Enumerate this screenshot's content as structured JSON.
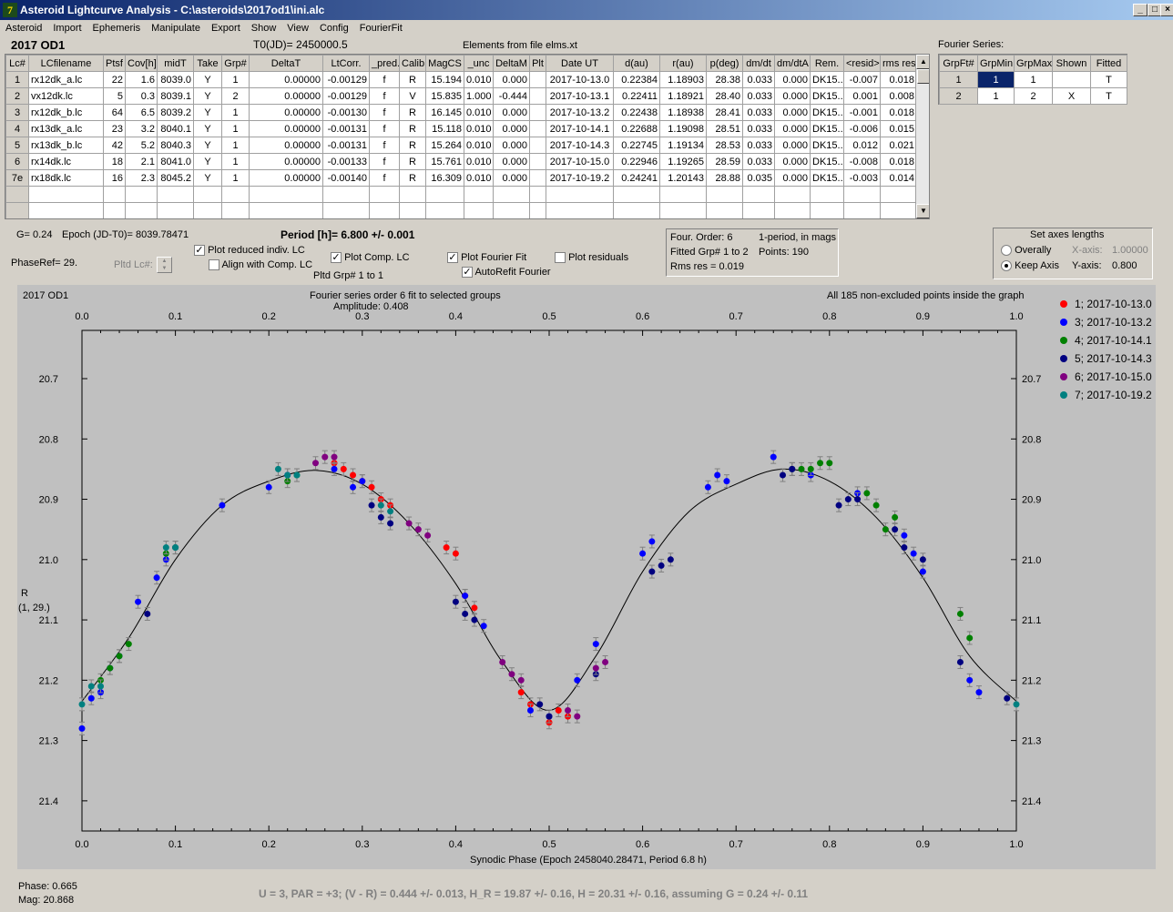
{
  "window": {
    "title": "Asteroid Lightcurve Analysis - C:\\asteroids\\2017od1\\ini.alc",
    "icon_char": "7"
  },
  "menu": [
    "Asteroid",
    "Import",
    "Ephemeris",
    "Manipulate",
    "Export",
    "Show",
    "View",
    "Config",
    "FourierFit"
  ],
  "header": {
    "object": "2017 OD1",
    "t0": "T0(JD)= 2450000.5",
    "elements": "Elements from file elms.xt"
  },
  "lc_table": {
    "columns": [
      "Lc#",
      "LCfilename",
      "Ptsf",
      "Cov[h]",
      "midT",
      "Take",
      "Grp#",
      "DeltaT",
      "LtCorr.",
      "_pred.",
      "Calib.",
      "MagCS",
      "_unc",
      "DeltaM",
      "Plt",
      "Date UT",
      "d(au)",
      "r(au)",
      "p(deg)",
      "dm/dt",
      "dm/dtA",
      "Rem.",
      "<resid>",
      "rms res"
    ],
    "rows": [
      [
        "1",
        "rx12dk_a.lc",
        "22",
        "1.6",
        "8039.0",
        "Y",
        "1",
        "0.00000",
        "-0.00129",
        "f",
        "R",
        "15.194",
        "0.010",
        "0.000",
        "",
        "2017-10-13.0",
        "0.22384",
        "1.18903",
        "28.38",
        "0.033",
        "0.000",
        "DK15..",
        "-0.007",
        "0.018"
      ],
      [
        "2",
        "vx12dk.lc",
        "5",
        "0.3",
        "8039.1",
        "Y",
        "2",
        "0.00000",
        "-0.00129",
        "f",
        "V",
        "15.835",
        "1.000",
        "-0.444",
        "",
        "2017-10-13.1",
        "0.22411",
        "1.18921",
        "28.40",
        "0.033",
        "0.000",
        "DK15..",
        "0.001",
        "0.008"
      ],
      [
        "3",
        "rx12dk_b.lc",
        "64",
        "6.5",
        "8039.2",
        "Y",
        "1",
        "0.00000",
        "-0.00130",
        "f",
        "R",
        "16.145",
        "0.010",
        "0.000",
        "",
        "2017-10-13.2",
        "0.22438",
        "1.18938",
        "28.41",
        "0.033",
        "0.000",
        "DK15..",
        "-0.001",
        "0.018"
      ],
      [
        "4",
        "rx13dk_a.lc",
        "23",
        "3.2",
        "8040.1",
        "Y",
        "1",
        "0.00000",
        "-0.00131",
        "f",
        "R",
        "15.118",
        "0.010",
        "0.000",
        "",
        "2017-10-14.1",
        "0.22688",
        "1.19098",
        "28.51",
        "0.033",
        "0.000",
        "DK15..",
        "-0.006",
        "0.015"
      ],
      [
        "5",
        "rx13dk_b.lc",
        "42",
        "5.2",
        "8040.3",
        "Y",
        "1",
        "0.00000",
        "-0.00131",
        "f",
        "R",
        "15.264",
        "0.010",
        "0.000",
        "",
        "2017-10-14.3",
        "0.22745",
        "1.19134",
        "28.53",
        "0.033",
        "0.000",
        "DK15..",
        "0.012",
        "0.021"
      ],
      [
        "6",
        "rx14dk.lc",
        "18",
        "2.1",
        "8041.0",
        "Y",
        "1",
        "0.00000",
        "-0.00133",
        "f",
        "R",
        "15.761",
        "0.010",
        "0.000",
        "",
        "2017-10-15.0",
        "0.22946",
        "1.19265",
        "28.59",
        "0.033",
        "0.000",
        "DK15..",
        "-0.008",
        "0.018"
      ],
      [
        "7e",
        "rx18dk.lc",
        "16",
        "2.3",
        "8045.2",
        "Y",
        "1",
        "0.00000",
        "-0.00140",
        "f",
        "R",
        "16.309",
        "0.010",
        "0.000",
        "",
        "2017-10-19.2",
        "0.24241",
        "1.20143",
        "28.88",
        "0.035",
        "0.000",
        "DK15..",
        "-0.003",
        "0.014"
      ],
      [
        "",
        "",
        "",
        "",
        "",
        "",
        "",
        "",
        "",
        "",
        "",
        "",
        "",
        "",
        "",
        "",
        "",
        "",
        "",
        "",
        "",
        "",
        "",
        ""
      ],
      [
        "",
        "",
        "",
        "",
        "",
        "",
        "",
        "",
        "",
        "",
        "",
        "",
        "",
        "",
        "",
        "",
        "",
        "",
        "",
        "",
        "",
        "",
        "",
        ""
      ]
    ]
  },
  "fourier_series": {
    "title": "Fourier Series:",
    "columns": [
      "GrpFt#",
      "GrpMin",
      "GrpMax",
      "Shown",
      "Fitted"
    ],
    "rows": [
      [
        "1",
        "1",
        "1",
        "",
        "T"
      ],
      [
        "2",
        "1",
        "2",
        "X",
        "T"
      ]
    ]
  },
  "info": {
    "g": "G= 0.24",
    "epoch": "Epoch (JD-T0)= 8039.78471",
    "period": "Period [h]= 6.800 +/- 0.001",
    "phase_ref": "PhaseRef= 29.",
    "pltd_lc": "Pltd Lc#:",
    "pltd_grp": "Pltd Grp#  1   to   1"
  },
  "checks": {
    "plot_reduced": {
      "label": "Plot reduced indiv. LC",
      "checked": "✓"
    },
    "align_comp": {
      "label": "Align with Comp. LC",
      "checked": ""
    },
    "plot_comp": {
      "label": "Plot Comp. LC",
      "checked": "✓"
    },
    "plot_fourier": {
      "label": "Plot Fourier Fit",
      "checked": "✓"
    },
    "autorefit": {
      "label": "AutoRefit Fourier",
      "checked": "✓"
    },
    "plot_residuals": {
      "label": "Plot residuals",
      "checked": ""
    }
  },
  "fourier_box": {
    "order": "Four. Order:  6",
    "period_mode": "1-period, in mags",
    "fitted": "Fitted Grp# 1 to 2",
    "points": "Points: 190",
    "rms": "Rms res      = 0.019"
  },
  "axes_box": {
    "title": "Set axes lengths",
    "overall": "Overally",
    "keep": "Keep Axis",
    "xaxis_label": "X-axis:",
    "xaxis_value": "1.00000",
    "yaxis_label": "Y-axis:",
    "yaxis_value": "0.800"
  },
  "plot_text": {
    "object": "2017 OD1",
    "fit_title": "Fourier series order 6 fit to selected groups",
    "amplitude": "Amplitude: 0.408",
    "points_note": "All 185 non-excluded points inside the graph",
    "ylabel_line1": "R",
    "ylabel_line2": "(1, 29.)",
    "xlabel": "Synodic Phase (Epoch 2458040.28471, Period 6.8 h)"
  },
  "status": {
    "phase": "Phase:  0.665",
    "mag": "Mag:    20.868",
    "summary": "U = 3, PAR = +3; (V - R) = 0.444 +/- 0.013, H_R = 19.87 +/- 0.16, H = 20.31 +/- 0.16, assuming G = 0.24 +/- 0.11"
  },
  "chart_data": {
    "type": "scatter",
    "xlabel": "Synodic Phase (Epoch 2458040.28471, Period 6.8 h)",
    "ylabel": "R (1, 29.)",
    "xlim": [
      0.0,
      1.0
    ],
    "ylim": [
      21.45,
      20.62
    ],
    "y_inverted": true,
    "xticks": [
      "0.0",
      "0.1",
      "0.2",
      "0.3",
      "0.4",
      "0.5",
      "0.6",
      "0.7",
      "0.8",
      "0.9",
      "1.0"
    ],
    "yticks": [
      "20.7",
      "20.8",
      "20.9",
      "21.0",
      "21.1",
      "21.2",
      "21.3",
      "21.4"
    ],
    "grid": false,
    "legend_position": "right",
    "fit_curve": {
      "x": [
        0.0,
        0.05,
        0.1,
        0.15,
        0.2,
        0.25,
        0.3,
        0.35,
        0.4,
        0.45,
        0.5,
        0.55,
        0.6,
        0.65,
        0.7,
        0.75,
        0.8,
        0.85,
        0.9,
        0.95,
        1.0
      ],
      "y": [
        21.235,
        21.13,
        21.0,
        20.91,
        20.87,
        20.852,
        20.875,
        20.94,
        21.04,
        21.17,
        21.25,
        21.16,
        21.02,
        20.92,
        20.875,
        20.85,
        20.87,
        20.93,
        21.03,
        21.16,
        21.235
      ]
    },
    "series": [
      {
        "name": "1; 2017-10-13.0",
        "color": "#ff0000",
        "x": [
          0.27,
          0.28,
          0.29,
          0.3,
          0.31,
          0.32,
          0.33,
          0.39,
          0.4,
          0.41,
          0.42,
          0.47,
          0.48,
          0.5,
          0.51,
          0.52
        ],
        "y": [
          20.84,
          20.85,
          20.86,
          20.87,
          20.88,
          20.9,
          20.91,
          20.98,
          20.99,
          21.06,
          21.08,
          21.22,
          21.24,
          21.27,
          21.25,
          21.26
        ]
      },
      {
        "name": "3; 2017-10-13.2",
        "color": "#0000ff",
        "x": [
          0.0,
          0.01,
          0.02,
          0.03,
          0.04,
          0.06,
          0.08,
          0.09,
          0.1,
          0.15,
          0.2,
          0.22,
          0.27,
          0.29,
          0.3,
          0.41,
          0.43,
          0.48,
          0.5,
          0.53,
          0.55,
          0.6,
          0.61,
          0.67,
          0.68,
          0.69,
          0.74,
          0.76,
          0.78,
          0.83,
          0.88,
          0.89,
          0.9,
          0.95,
          0.96
        ],
        "y": [
          21.28,
          21.23,
          21.22,
          21.18,
          21.16,
          21.07,
          21.03,
          21.0,
          20.98,
          20.91,
          20.88,
          20.86,
          20.85,
          20.88,
          20.87,
          21.06,
          21.11,
          21.25,
          21.26,
          21.2,
          21.14,
          20.99,
          20.97,
          20.88,
          20.86,
          20.87,
          20.83,
          20.85,
          20.86,
          20.89,
          20.96,
          20.99,
          21.02,
          21.2,
          21.22
        ]
      },
      {
        "name": "4; 2017-10-14.1",
        "color": "#008000",
        "x": [
          0.02,
          0.03,
          0.04,
          0.05,
          0.09,
          0.1,
          0.22,
          0.23,
          0.76,
          0.77,
          0.78,
          0.79,
          0.8,
          0.84,
          0.85,
          0.86,
          0.87,
          0.94,
          0.95
        ],
        "y": [
          21.2,
          21.18,
          21.16,
          21.14,
          20.99,
          20.98,
          20.87,
          20.86,
          20.85,
          20.85,
          20.85,
          20.84,
          20.84,
          20.89,
          20.91,
          20.95,
          20.93,
          21.09,
          21.13
        ]
      },
      {
        "name": "5; 2017-10-14.3",
        "color": "#000080",
        "x": [
          0.07,
          0.31,
          0.32,
          0.33,
          0.4,
          0.41,
          0.42,
          0.49,
          0.5,
          0.55,
          0.61,
          0.62,
          0.63,
          0.75,
          0.76,
          0.81,
          0.82,
          0.83,
          0.87,
          0.88,
          0.9,
          0.94,
          0.99
        ],
        "y": [
          21.09,
          20.91,
          20.93,
          20.94,
          21.07,
          21.09,
          21.1,
          21.24,
          21.26,
          21.19,
          21.02,
          21.01,
          21.0,
          20.86,
          20.85,
          20.91,
          20.9,
          20.9,
          20.95,
          20.98,
          21.0,
          21.17,
          21.23
        ]
      },
      {
        "name": "6; 2017-10-15.0",
        "color": "#800080",
        "x": [
          0.25,
          0.26,
          0.27,
          0.35,
          0.36,
          0.37,
          0.45,
          0.46,
          0.47,
          0.52,
          0.53,
          0.55,
          0.56
        ],
        "y": [
          20.84,
          20.83,
          20.83,
          20.94,
          20.95,
          20.96,
          21.17,
          21.19,
          21.2,
          21.25,
          21.26,
          21.18,
          21.17
        ]
      },
      {
        "name": "7; 2017-10-19.2",
        "color": "#008080",
        "x": [
          0.0,
          0.01,
          0.02,
          0.09,
          0.1,
          0.21,
          0.22,
          0.23,
          0.32,
          0.33,
          1.0
        ],
        "y": [
          21.24,
          21.21,
          21.21,
          20.98,
          20.98,
          20.85,
          20.86,
          20.86,
          20.91,
          20.92,
          21.24
        ]
      }
    ]
  }
}
